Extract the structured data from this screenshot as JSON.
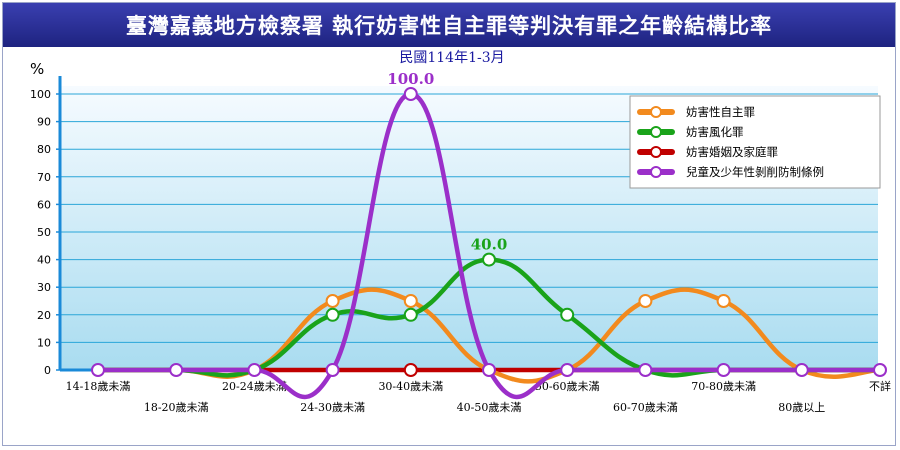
{
  "chart_data": {
    "type": "line",
    "title": "臺灣嘉義地方檢察署 執行妨害性自主罪等判決有罪之年齡結構比率",
    "subtitle": "民國114年1-3月",
    "ylabel": "%",
    "xlabel": "",
    "ylim": [
      0,
      100
    ],
    "yticks": [
      0,
      10,
      20,
      30,
      40,
      50,
      60,
      70,
      80,
      90,
      100
    ],
    "grid": true,
    "legend_position": "top-right",
    "categories": [
      "14-18歲未滿",
      "18-20歲未滿",
      "20-24歲未滿",
      "24-30歲未滿",
      "30-40歲未滿",
      "40-50歲未滿",
      "50-60歲未滿",
      "60-70歲未滿",
      "70-80歲未滿",
      "80歲以上",
      "不詳"
    ],
    "series": [
      {
        "name": "妨害性自主罪",
        "color": "#f28a1e",
        "values": [
          0,
          0,
          0,
          25,
          25,
          0,
          0,
          25,
          25,
          0,
          0
        ]
      },
      {
        "name": "妨害風化罪",
        "color": "#1aa31a",
        "values": [
          0,
          0,
          0,
          20,
          20,
          40,
          20,
          0,
          0,
          0,
          0
        ]
      },
      {
        "name": "妨害婚姻及家庭罪",
        "color": "#c00000",
        "values": [
          0,
          0,
          0,
          0,
          0,
          0,
          0,
          0,
          0,
          0,
          0
        ]
      },
      {
        "name": "兒童及少年性剝削防制條例",
        "color": "#9b2fc9",
        "values": [
          0,
          0,
          0,
          0,
          100,
          0,
          0,
          0,
          0,
          0,
          0
        ]
      }
    ],
    "annotations": [
      {
        "text": "100.0",
        "category": "30-40歲未滿",
        "value": 100,
        "color": "#9b2fc9"
      },
      {
        "text": "40.0",
        "category": "40-50歲未滿",
        "value": 40,
        "color": "#1aa31a"
      }
    ]
  }
}
